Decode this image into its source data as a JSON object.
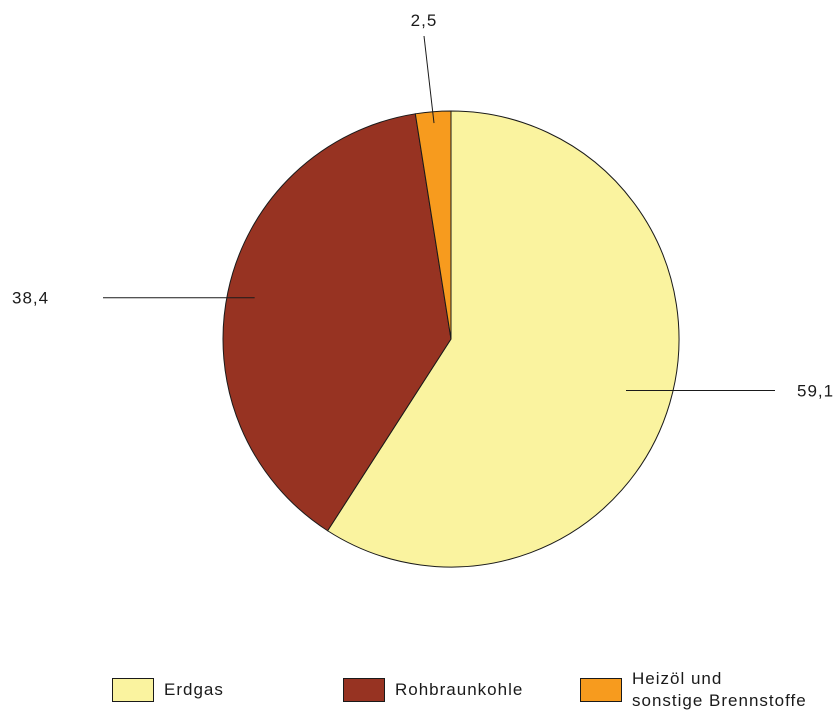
{
  "chart_data": {
    "type": "pie",
    "start_angle_deg": 0,
    "direction": "clockwise",
    "slices": [
      {
        "label": "Erdgas",
        "value": 59.1,
        "value_label": "59,1",
        "color": "#FAF39F"
      },
      {
        "label": "Rohbraunkohle",
        "value": 38.4,
        "value_label": "38,4",
        "color": "#973322"
      },
      {
        "label": "Heizöl und\nsonstige Brennstoffe",
        "value": 2.5,
        "value_label": "2,5",
        "color": "#F79B1E"
      }
    ],
    "legend_position": "bottom",
    "stroke_color": "#1a1a1a"
  }
}
